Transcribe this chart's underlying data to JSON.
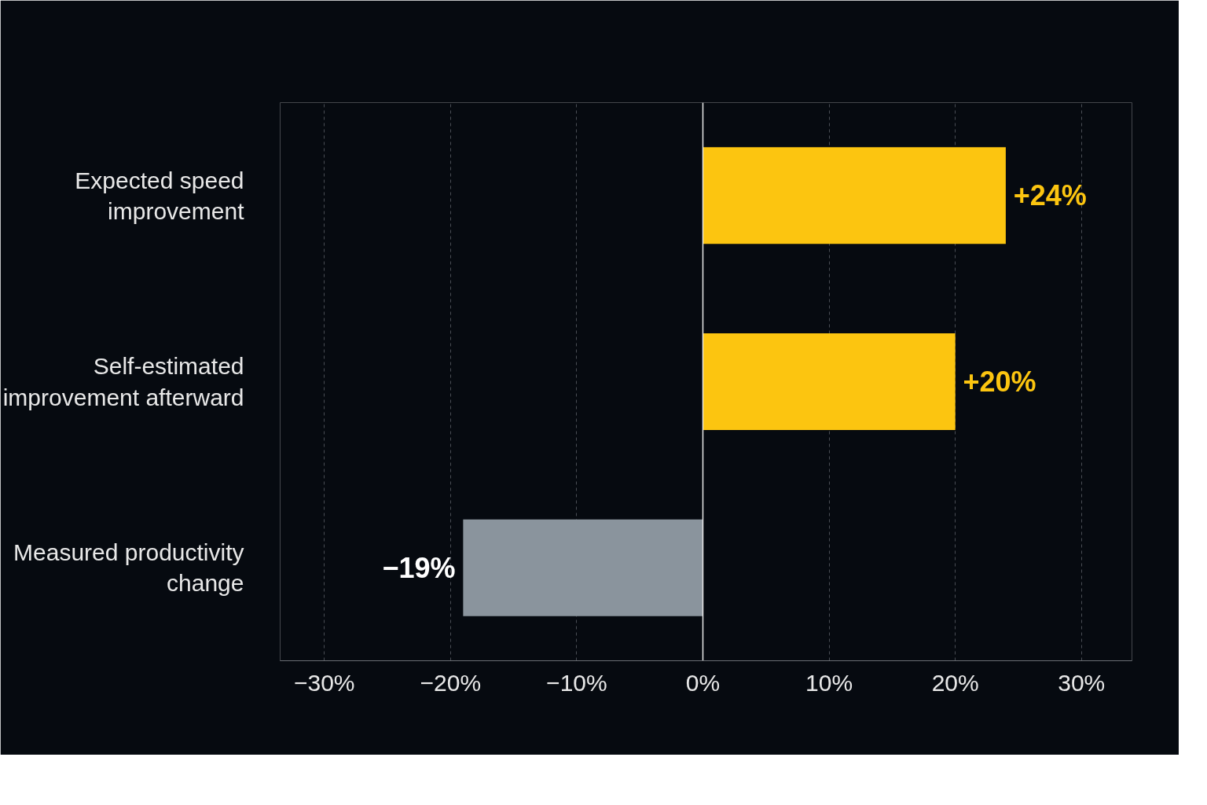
{
  "chart_data": {
    "type": "bar",
    "orientation": "horizontal",
    "categories": [
      "Expected speed improvement",
      "Self-estimated improvement afterward",
      "Measured productivity change"
    ],
    "values": [
      24,
      20,
      -19
    ],
    "colors": [
      "#fcc510",
      "#fcc510",
      "#8a949d"
    ],
    "value_labels": [
      "+24%",
      "+20%",
      "−19%"
    ],
    "xlim": [
      -33.5,
      34
    ],
    "xticks": [
      {
        "value": -30,
        "label": "−30%"
      },
      {
        "value": -20,
        "label": "−20%"
      },
      {
        "value": -10,
        "label": "−10%"
      },
      {
        "value": 0,
        "label": "0%"
      },
      {
        "value": 10,
        "label": "10%"
      },
      {
        "value": 20,
        "label": "20%"
      },
      {
        "value": 30,
        "label": "30%"
      }
    ],
    "grid": "x"
  }
}
